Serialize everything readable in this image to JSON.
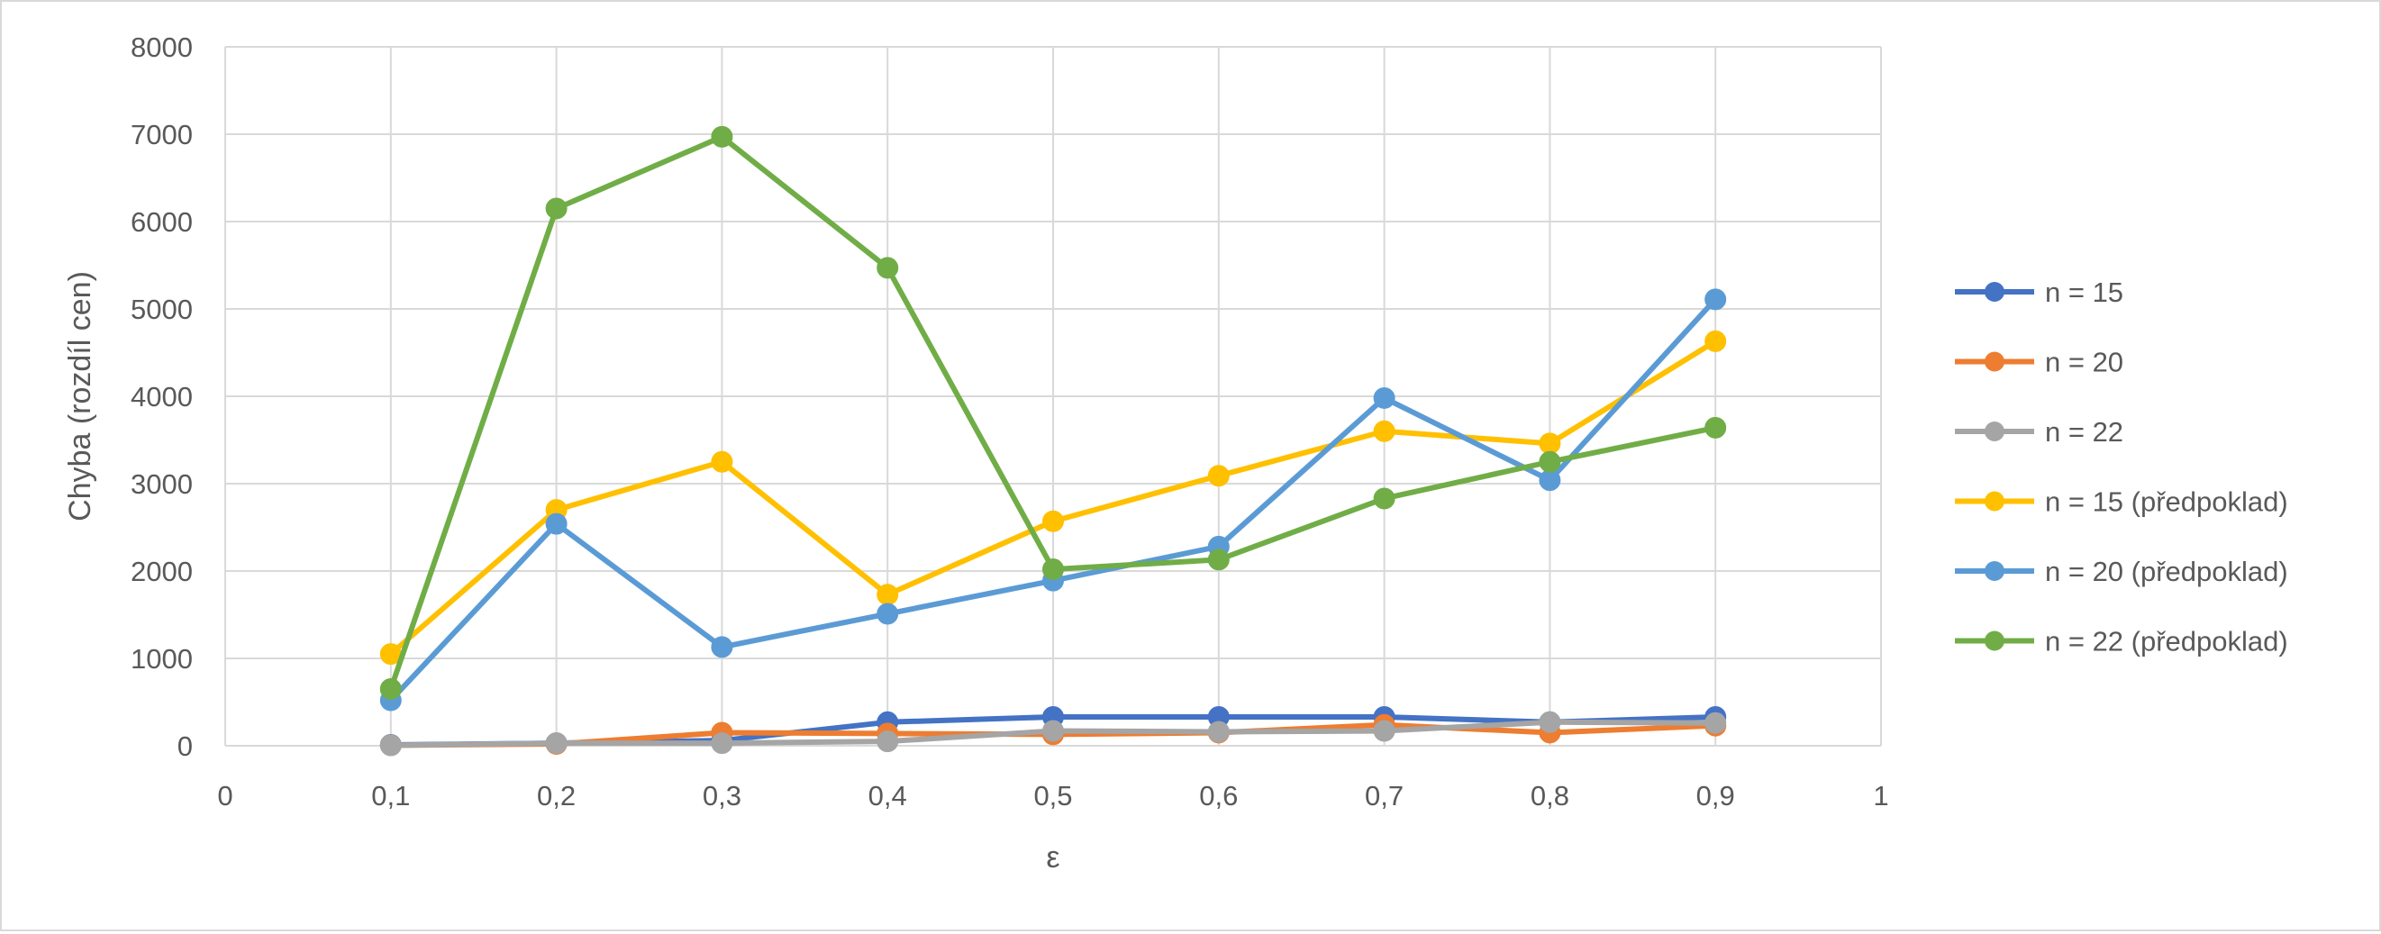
{
  "chart_data": {
    "type": "line",
    "title": "",
    "xlabel": "ε",
    "ylabel": "Chyba (rozdíl cen)",
    "xlim": [
      0,
      1
    ],
    "ylim": [
      0,
      8000
    ],
    "x_ticks": [
      0,
      0.1,
      0.2,
      0.3,
      0.4,
      0.5,
      0.6,
      0.7,
      0.8,
      0.9,
      1
    ],
    "x_tick_labels": [
      "0",
      "0,1",
      "0,2",
      "0,3",
      "0,4",
      "0,5",
      "0,6",
      "0,7",
      "0,8",
      "0,9",
      "1"
    ],
    "y_ticks": [
      0,
      1000,
      2000,
      3000,
      4000,
      5000,
      6000,
      7000,
      8000
    ],
    "y_tick_labels": [
      "0",
      "1000",
      "2000",
      "3000",
      "4000",
      "5000",
      "6000",
      "7000",
      "8000"
    ],
    "grid": true,
    "legend_position": "right",
    "x": [
      0.1,
      0.2,
      0.3,
      0.4,
      0.5,
      0.6,
      0.7,
      0.8,
      0.9
    ],
    "series": [
      {
        "name": "n = 15",
        "color": "#4472c4",
        "values": [
          10,
          30,
          60,
          270,
          330,
          330,
          330,
          270,
          330
        ]
      },
      {
        "name": "n = 20",
        "color": "#ed7d31",
        "values": [
          5,
          20,
          150,
          140,
          130,
          150,
          240,
          150,
          230
        ]
      },
      {
        "name": "n = 22",
        "color": "#a5a5a5",
        "values": [
          5,
          30,
          30,
          50,
          170,
          160,
          170,
          270,
          260
        ]
      },
      {
        "name": "n = 15 (předpoklad)",
        "color": "#ffc000",
        "values": [
          1050,
          2700,
          3250,
          1730,
          2570,
          3090,
          3600,
          3460,
          4630
        ]
      },
      {
        "name": "n = 20 (předpoklad)",
        "color": "#5b9bd5",
        "values": [
          520,
          2540,
          1130,
          1510,
          1890,
          2280,
          3980,
          3040,
          5110
        ]
      },
      {
        "name": "n = 22 (předpoklad)",
        "color": "#70ad47",
        "values": [
          650,
          6150,
          6970,
          5470,
          2020,
          2130,
          2830,
          3250,
          3640
        ]
      }
    ]
  }
}
